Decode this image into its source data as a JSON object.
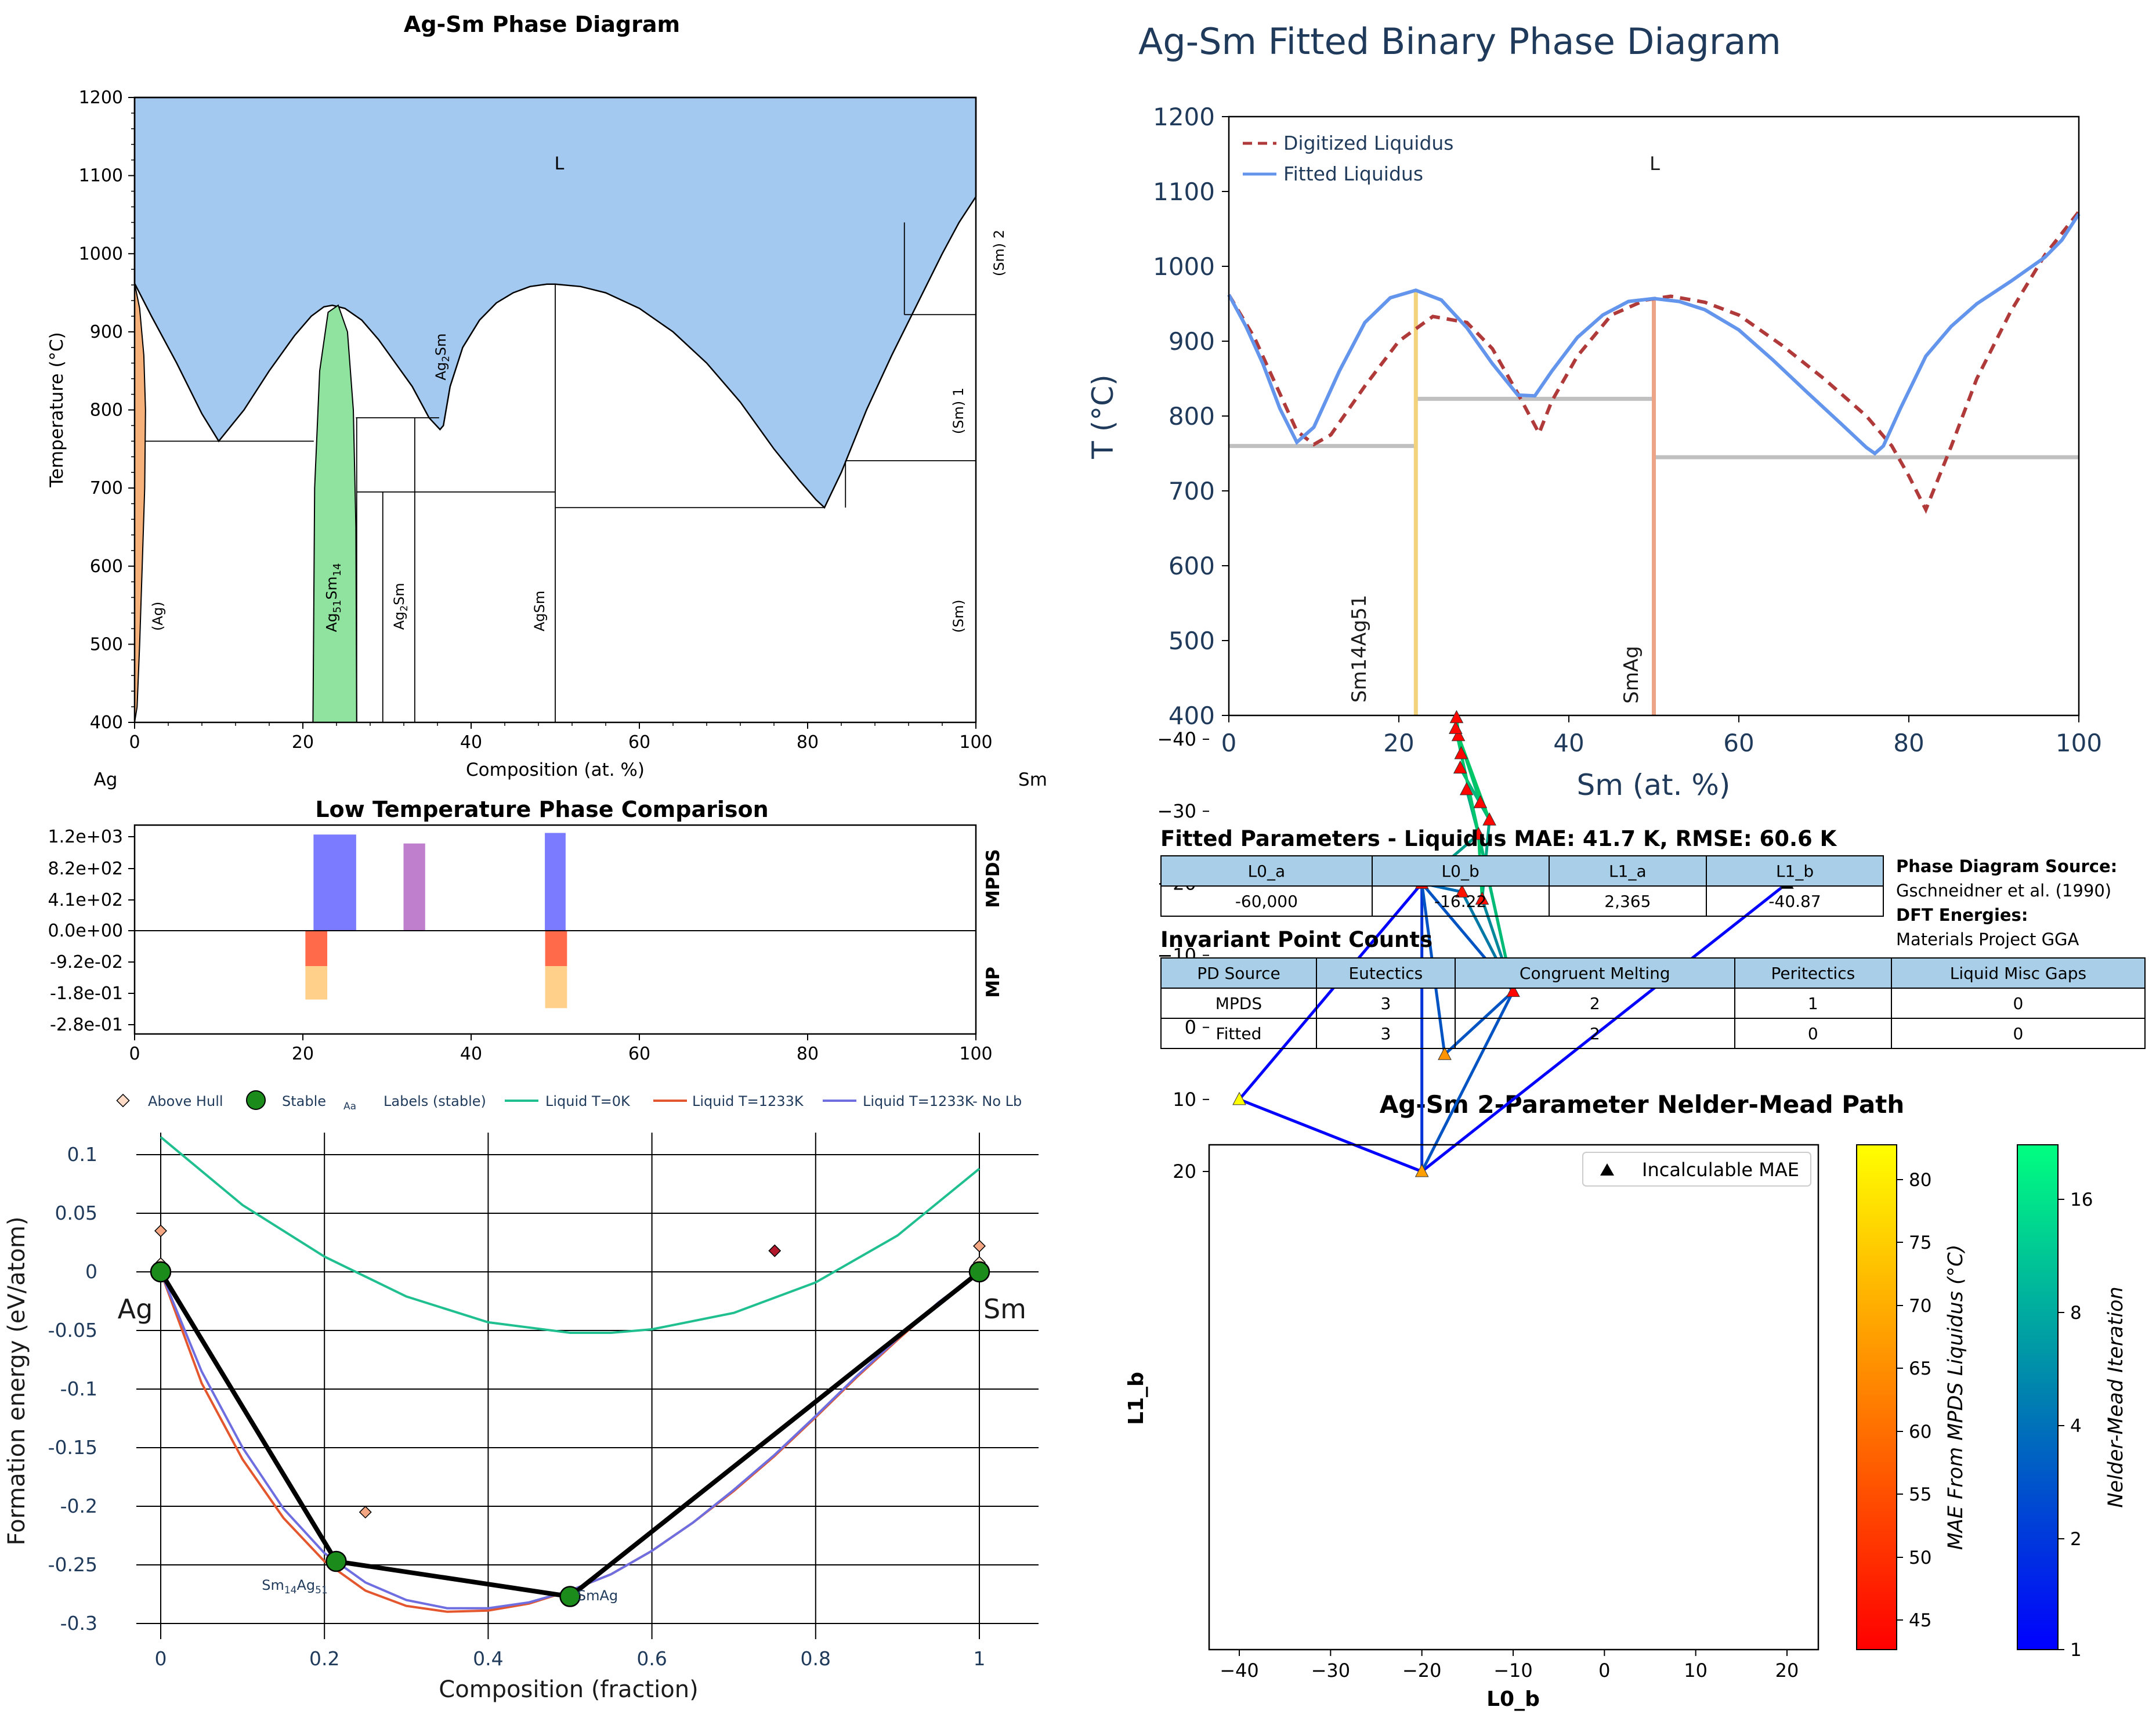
{
  "phase_diagram": {
    "title": "Ag-Sm Phase Diagram",
    "xlabel": "Composition (at. %)",
    "ylabel": "Temperature (°C)",
    "left_element": "Ag",
    "right_element": "Sm",
    "xticks": [
      "0",
      "20",
      "40",
      "60",
      "80",
      "100"
    ],
    "yticks": [
      "400",
      "500",
      "600",
      "700",
      "800",
      "900",
      "1000",
      "1100",
      "1200"
    ],
    "labels": {
      "liquid": "L",
      "ag_ss": "(Ag)",
      "ag51sm14": "Ag51Sm14",
      "ag2sm_low": "Ag2Sm",
      "ag2sm_high": "Ag2Sm",
      "agsm": "AgSm",
      "sm": "(Sm)",
      "sm1": "(Sm) 1",
      "sm2": "(Sm) 2"
    },
    "colors": {
      "liquid": "#a3c9f0",
      "ag_ss": "#f6b07a",
      "ag51sm14": "#8fe39e"
    }
  },
  "low_temp": {
    "title": "Low Temperature Phase Comparison",
    "yticks": [
      "1.2e+03",
      "8.2e+02",
      "4.1e+02",
      "0.0e+00",
      "-9.2e-02",
      "-1.8e-01",
      "-2.8e-01"
    ],
    "xticks": [
      "0",
      "20",
      "40",
      "60",
      "80",
      "100"
    ],
    "label_top": "MPDS",
    "label_bottom": "MP"
  },
  "hull": {
    "xlabel": "Composition (fraction)",
    "ylabel": "Formation energy (eV/atom)",
    "xticks": [
      "0",
      "0.2",
      "0.4",
      "0.6",
      "0.8",
      "1"
    ],
    "yticks": [
      "0.1",
      "0.05",
      "0",
      "-0.05",
      "-0.1",
      "-0.15",
      "-0.2",
      "-0.25",
      "-0.3"
    ],
    "legend": [
      "Above Hull",
      "Stable",
      "Labels (stable)",
      "Liquid T=0K",
      "Liquid T=1233K",
      "Liquid T=1233K- No Lb"
    ],
    "legend_aa": "Aa",
    "end_left": "Ag",
    "end_right": "Sm",
    "phase_labels": [
      "Sm14Ag51",
      "SmAg"
    ]
  },
  "fitted": {
    "title": "Ag-Sm Fitted Binary Phase Diagram",
    "xlabel": "Sm (at. %)",
    "ylabel": "T (°C)",
    "xticks": [
      "0",
      "20",
      "40",
      "60",
      "80",
      "100"
    ],
    "yticks": [
      "400",
      "500",
      "600",
      "700",
      "800",
      "900",
      "1000",
      "1100",
      "1200"
    ],
    "legend": [
      "Digitized Liquidus",
      "Fitted Liquidus"
    ],
    "liquid_label": "L",
    "compound_labels": [
      "Sm14Ag51",
      "SmAg"
    ]
  },
  "params": {
    "title": "Fitted Parameters - Liquidus MAE: 41.7 K, RMSE: 60.6 K",
    "headers": [
      "L0_a",
      "L0_b",
      "L1_a",
      "L1_b"
    ],
    "values": [
      "-60,000",
      "-16.22",
      "2,365",
      "-40.87"
    ]
  },
  "source": {
    "pd_label": "Phase Diagram Source:",
    "pd_value": "Gschneidner et al. (1990)",
    "dft_label": "DFT Energies:",
    "dft_value": "Materials Project GGA"
  },
  "invariants": {
    "title": "Invariant Point Counts",
    "headers": [
      "PD Source",
      "Eutectics",
      "Congruent Melting",
      "Peritectics",
      "Liquid Misc Gaps"
    ],
    "rows": [
      [
        "MPDS",
        "3",
        "2",
        "1",
        "0"
      ],
      [
        "Fitted",
        "3",
        "2",
        "0",
        "0"
      ]
    ]
  },
  "nelder_mead": {
    "title": "Ag-Sm 2-Parameter Nelder-Mead Path",
    "xlabel": "L0_b",
    "ylabel": "L1_b",
    "xticks": [
      "−40",
      "−30",
      "−20",
      "−10",
      "0",
      "10",
      "20"
    ],
    "yticks": [
      "20",
      "10",
      "0",
      "−10",
      "−20",
      "−30",
      "−40"
    ],
    "legend": "Incalculable MAE",
    "cbar1_label": "MAE From MPDS Liquidus (°C)",
    "cbar1_ticks": [
      "80",
      "75",
      "70",
      "65",
      "60",
      "55",
      "50",
      "45"
    ],
    "cbar2_label": "Nelder-Mead Iteration",
    "cbar2_ticks": [
      "16",
      "8",
      "4",
      "2",
      "1"
    ]
  },
  "chart_data": [
    {
      "type": "area",
      "title": "Ag-Sm Phase Diagram",
      "xlabel": "Composition (at. %)",
      "ylabel": "Temperature (°C)",
      "xlim": [
        0,
        100
      ],
      "ylim": [
        400,
        1200
      ],
      "liquidus": {
        "x": [
          0,
          2,
          5,
          8,
          10,
          13,
          16,
          19,
          21,
          22.5,
          23.5,
          25,
          27,
          29,
          31,
          33,
          35,
          36.3,
          36.7,
          37.5,
          39,
          41,
          43,
          45,
          47,
          49,
          50,
          53,
          56,
          60,
          64,
          68,
          72,
          76,
          79,
          81,
          82,
          84,
          87,
          90,
          93,
          96,
          98,
          100
        ],
        "y": [
          962,
          920,
          860,
          795,
          760,
          800,
          850,
          895,
          920,
          932,
          934,
          930,
          915,
          890,
          860,
          830,
          790,
          775,
          780,
          830,
          880,
          915,
          937,
          950,
          958,
          961,
          961,
          958,
          950,
          930,
          900,
          860,
          810,
          750,
          710,
          685,
          675,
          720,
          800,
          870,
          935,
          1000,
          1040,
          1073
        ]
      },
      "ag_solvus": {
        "x": [
          0,
          0.6,
          1.1,
          1.3,
          1.2,
          0.9,
          0.6,
          0.3,
          0
        ],
        "y": [
          962,
          930,
          870,
          800,
          700,
          600,
          500,
          420,
          400
        ]
      },
      "ag51sm14_region": {
        "x": [
          21.2,
          21.4,
          22.0,
          23.0,
          24.2,
          25.3,
          26.0,
          26.3,
          26.4
        ],
        "y": [
          400,
          700,
          850,
          925,
          934,
          900,
          800,
          650,
          400
        ]
      },
      "compound_lines_x": [
        26.4,
        29.5,
        33.3,
        50
      ],
      "horizontal_lines": [
        {
          "y": 760,
          "x": [
            1.2,
            21.3
          ]
        },
        {
          "y": 790,
          "x": [
            26.3,
            36.2
          ]
        },
        {
          "y": 695,
          "x": [
            26.4,
            50
          ]
        },
        {
          "y": 675,
          "x": [
            50,
            82
          ]
        },
        {
          "y": 735,
          "x": [
            84.5,
            100
          ]
        },
        {
          "y": 922,
          "x": [
            91.5,
            100
          ]
        }
      ],
      "sm_boundary": {
        "x": [
          84.5,
          91.5,
          97
        ],
        "y": [
          675,
          675,
          1040
        ]
      }
    },
    {
      "type": "bar",
      "title": "Low Temperature Phase Comparison",
      "xlim": [
        0,
        100
      ],
      "mpds": [
        {
          "x0": 21.3,
          "x1": 26.3,
          "value": 1180,
          "color": "#7b7bff"
        },
        {
          "x0": 32.0,
          "x1": 34.5,
          "value": 1070,
          "color": "#bf7fcd"
        },
        {
          "x0": 48.8,
          "x1": 51.2,
          "value": 1200,
          "color": "#7b7bff"
        }
      ],
      "mp": [
        {
          "x0": 20.3,
          "x1": 22.9,
          "value": -0.103,
          "color": "#ff6b4a"
        },
        {
          "x0": 22.9,
          "x1": 23.0,
          "value": -0.0,
          "color": "#ff6b4a"
        },
        {
          "x0": 20.3,
          "x1": 22.9,
          "value": -0.2,
          "from": -0.103,
          "color": "#ffd08a"
        },
        {
          "x0": 48.8,
          "x1": 51.4,
          "value": -0.103,
          "color": "#ff6b4a"
        },
        {
          "x0": 48.8,
          "x1": 51.4,
          "value": -0.225,
          "from": -0.103,
          "color": "#ffd08a"
        }
      ]
    },
    {
      "type": "line",
      "title": "",
      "xlabel": "Composition (fraction)",
      "ylabel": "Formation energy (eV/atom)",
      "xlim": [
        -0.03,
        1.07
      ],
      "ylim": [
        -0.305,
        0.13
      ],
      "hull": {
        "x": [
          0,
          0.2143,
          0.5,
          1
        ],
        "y": [
          0,
          -0.247,
          -0.277,
          0
        ]
      },
      "stable": {
        "x": [
          0,
          0.2143,
          0.5,
          1
        ],
        "y": [
          0,
          -0.247,
          -0.277,
          0
        ]
      },
      "above_hull": {
        "x": [
          0,
          0,
          0.25,
          0.75,
          1,
          1
        ],
        "y": [
          0.035,
          0.007,
          -0.205,
          0.018,
          0.022,
          0.008
        ],
        "colors": [
          "#f4a582",
          "#fddbc7",
          "#f4a582",
          "#b2182b",
          "#f4a582",
          "#fddbc7"
        ]
      },
      "series": [
        {
          "name": "Liquid T=0K",
          "color": "#1fbf8f",
          "x": [
            0,
            0.1,
            0.2,
            0.3,
            0.4,
            0.5,
            0.55,
            0.6,
            0.7,
            0.8,
            0.9,
            1.0
          ],
          "y": [
            0.115,
            0.057,
            0.013,
            -0.021,
            -0.043,
            -0.052,
            -0.052,
            -0.049,
            -0.035,
            -0.009,
            0.031,
            0.088
          ]
        },
        {
          "name": "Liquid T=1233K",
          "color": "#e4572e",
          "x": [
            0,
            0.05,
            0.1,
            0.15,
            0.2,
            0.25,
            0.3,
            0.35,
            0.4,
            0.45,
            0.5,
            0.55,
            0.6,
            0.65,
            0.7,
            0.75,
            0.8,
            0.85,
            0.9,
            0.95,
            1.0
          ],
          "y": [
            0,
            -0.095,
            -0.16,
            -0.21,
            -0.247,
            -0.272,
            -0.285,
            -0.29,
            -0.289,
            -0.283,
            -0.272,
            -0.258,
            -0.238,
            -0.214,
            -0.187,
            -0.157,
            -0.124,
            -0.09,
            -0.058,
            -0.027,
            0
          ]
        },
        {
          "name": "Liquid T=1233K- No Lb",
          "color": "#6e6ee0",
          "x": [
            0,
            0.05,
            0.1,
            0.15,
            0.2,
            0.25,
            0.3,
            0.35,
            0.4,
            0.45,
            0.5,
            0.55,
            0.6,
            0.65,
            0.7,
            0.75,
            0.8,
            0.85,
            0.9,
            0.95,
            1.0
          ],
          "y": [
            0,
            -0.085,
            -0.15,
            -0.202,
            -0.24,
            -0.265,
            -0.28,
            -0.287,
            -0.287,
            -0.282,
            -0.272,
            -0.258,
            -0.238,
            -0.214,
            -0.186,
            -0.156,
            -0.123,
            -0.089,
            -0.057,
            -0.026,
            0
          ]
        }
      ]
    },
    {
      "type": "line",
      "title": "Ag-Sm Fitted Binary Phase Diagram",
      "xlabel": "Sm (at. %)",
      "ylabel": "T (°C)",
      "xlim": [
        0,
        100
      ],
      "ylim": [
        400,
        1200
      ],
      "series": [
        {
          "name": "Digitized Liquidus",
          "color": "#b03a3a",
          "x": [
            0,
            3,
            6,
            8,
            10,
            12,
            16,
            20,
            24,
            28,
            31,
            34,
            36.5,
            38,
            41,
            45,
            49,
            52,
            56,
            60,
            65,
            70,
            75,
            78,
            80,
            82,
            85,
            88,
            92,
            96,
            100
          ],
          "y": [
            962,
            905,
            830,
            780,
            762,
            775,
            840,
            900,
            933,
            925,
            890,
            830,
            777,
            820,
            880,
            935,
            955,
            960,
            952,
            935,
            895,
            850,
            800,
            760,
            720,
            675,
            760,
            850,
            940,
            1015,
            1073
          ]
        },
        {
          "name": "Fitted Liquidus",
          "color": "#6495ed",
          "x": [
            0,
            2,
            4,
            6,
            8,
            10,
            13,
            16,
            19,
            22,
            25,
            28,
            31,
            34,
            36,
            38,
            41,
            44,
            47,
            50,
            53,
            56,
            60,
            64,
            68,
            72,
            75,
            76,
            77,
            79,
            82,
            85,
            88,
            92,
            96,
            98,
            100
          ],
          "y": [
            962,
            920,
            870,
            810,
            765,
            785,
            860,
            925,
            958,
            968,
            955,
            918,
            870,
            828,
            827,
            860,
            905,
            935,
            953,
            957,
            953,
            942,
            915,
            875,
            832,
            790,
            758,
            750,
            760,
            810,
            880,
            920,
            950,
            980,
            1012,
            1035,
            1070
          ]
        }
      ],
      "horizontal_lines": [
        {
          "y": 760,
          "x": [
            0,
            22
          ]
        },
        {
          "y": 823,
          "x": [
            22,
            50
          ]
        },
        {
          "y": 745,
          "x": [
            50,
            100
          ]
        }
      ],
      "compound_lines": [
        {
          "name": "Sm14Ag51",
          "x": 22,
          "top": 968,
          "color": "#f3d27c"
        },
        {
          "name": "SmAg",
          "x": 50,
          "top": 958,
          "color": "#eba486"
        }
      ]
    },
    {
      "type": "scatter",
      "title": "Ag-Sm 2-Parameter Nelder-Mead Path",
      "xlabel": "L0_b",
      "ylabel": "L1_b",
      "xlim": [
        -43,
        24
      ],
      "ylim": [
        -45,
        23
      ],
      "points": [
        {
          "x": -40,
          "y": 10,
          "mae": 83
        },
        {
          "x": -20,
          "y": 20,
          "mae": 68
        },
        {
          "x": 20,
          "y": -20,
          "mae": null
        },
        {
          "x": -20,
          "y": -20,
          "mae": 45
        },
        {
          "x": -17.5,
          "y": 3.75,
          "mae": 66
        },
        {
          "x": -10,
          "y": -5,
          "mae": 44
        },
        {
          "x": -15.6,
          "y": -18.8,
          "mae": 46
        },
        {
          "x": -13.4,
          "y": -17.8,
          "mae": 45
        },
        {
          "x": -13.8,
          "y": -26.8,
          "mae": 44
        },
        {
          "x": -12.6,
          "y": -28.8,
          "mae": 44
        },
        {
          "x": -13.6,
          "y": -31.2,
          "mae": 44
        },
        {
          "x": -15.1,
          "y": -33.0,
          "mae": 44
        },
        {
          "x": -15.8,
          "y": -36.0,
          "mae": 44
        },
        {
          "x": -15.7,
          "y": -38.0,
          "mae": 44
        },
        {
          "x": -16.0,
          "y": -40.5,
          "mae": 44
        },
        {
          "x": -16.3,
          "y": -41.5,
          "mae": 44
        },
        {
          "x": -16.2,
          "y": -43.0,
          "mae": 44
        }
      ],
      "edges": [
        [
          -40,
          10,
          -20,
          20,
          1
        ],
        [
          -40,
          10,
          -20,
          -20,
          1
        ],
        [
          -20,
          20,
          20,
          -20,
          1
        ],
        [
          -20,
          -20,
          20,
          -20,
          1
        ],
        [
          -20,
          20,
          -20,
          -20,
          2
        ],
        [
          -20,
          20,
          -10,
          -5,
          3
        ],
        [
          -17.5,
          3.75,
          -20,
          -20,
          3
        ],
        [
          -17.5,
          3.75,
          -10,
          -5,
          3
        ],
        [
          -20,
          -20,
          -10,
          -5,
          3
        ],
        [
          -20,
          -20,
          -15.6,
          -18.8,
          4
        ],
        [
          -15.6,
          -18.8,
          -10,
          -5,
          5
        ],
        [
          -10,
          -5,
          -13.4,
          -17.8,
          6
        ],
        [
          -10,
          -5,
          -13.8,
          -26.8,
          8
        ],
        [
          -20,
          -20,
          -13.8,
          -26.8,
          8
        ],
        [
          -13.4,
          -17.8,
          -12.6,
          -28.8,
          9
        ],
        [
          -13.8,
          -26.8,
          -15.1,
          -33.0,
          10
        ],
        [
          -12.6,
          -28.8,
          -15.8,
          -36.0,
          11
        ],
        [
          -10,
          -5,
          -15.7,
          -38.0,
          12
        ],
        [
          -13.6,
          -31.2,
          -16.0,
          -40.5,
          13
        ],
        [
          -13.8,
          -26.8,
          -16.3,
          -41.5,
          14
        ],
        [
          -15.7,
          -38.0,
          -16.2,
          -43.0,
          15
        ],
        [
          -12.6,
          -28.8,
          -16.3,
          -41.5,
          16
        ],
        [
          -13.4,
          -17.8,
          -13.8,
          -26.8,
          14
        ]
      ]
    }
  ]
}
